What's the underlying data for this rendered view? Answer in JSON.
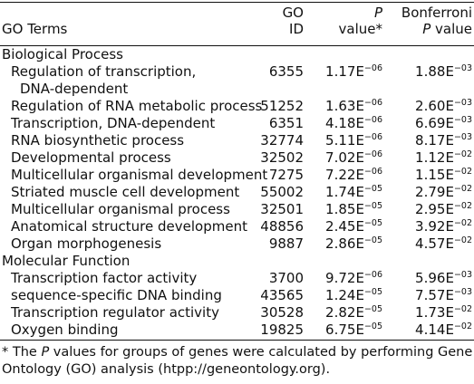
{
  "header": {
    "terms": "GO Terms",
    "goid_line1": "GO",
    "goid_line2": "ID",
    "p_line1": "P",
    "p_line2": "value*",
    "bonf_line1": "Bonferroni",
    "bonf_line2_italic": "P",
    "bonf_line2_rest": " value"
  },
  "sections": [
    {
      "title": "Biological Process",
      "rows": [
        {
          "term": "Regulation of transcription,",
          "term2": "DNA-dependent",
          "id": "6355",
          "p_base": "1.17E",
          "p_exp": "−06",
          "b_base": "1.88E",
          "b_exp": "−03"
        },
        {
          "term": "Regulation of RNA metabolic process",
          "id": "51252",
          "p_base": "1.63E",
          "p_exp": "−06",
          "b_base": "2.60E",
          "b_exp": "−03"
        },
        {
          "term": "Transcription, DNA-dependent",
          "id": "6351",
          "p_base": "4.18E",
          "p_exp": "−06",
          "b_base": "6.69E",
          "b_exp": "−03"
        },
        {
          "term": "RNA biosynthetic process",
          "id": "32774",
          "p_base": "5.11E",
          "p_exp": "−06",
          "b_base": "8.17E",
          "b_exp": "−03"
        },
        {
          "term": "Developmental process",
          "id": "32502",
          "p_base": "7.02E",
          "p_exp": "−06",
          "b_base": "1.12E",
          "b_exp": "−02"
        },
        {
          "term": "Multicellular organismal development",
          "id": "7275",
          "p_base": "7.22E",
          "p_exp": "−06",
          "b_base": "1.15E",
          "b_exp": "−02"
        },
        {
          "term": "Striated muscle cell development",
          "id": "55002",
          "p_base": "1.74E",
          "p_exp": "−05",
          "b_base": "2.79E",
          "b_exp": "−02"
        },
        {
          "term": "Multicellular organismal process",
          "id": "32501",
          "p_base": "1.85E",
          "p_exp": "−05",
          "b_base": "2.95E",
          "b_exp": "−02"
        },
        {
          "term": "Anatomical structure development",
          "id": "48856",
          "p_base": "2.45E",
          "p_exp": "−05",
          "b_base": "3.92E",
          "b_exp": "−02"
        },
        {
          "term": "Organ morphogenesis",
          "id": "9887",
          "p_base": "2.86E",
          "p_exp": "−05",
          "b_base": "4.57E",
          "b_exp": "−02"
        }
      ]
    },
    {
      "title": "Molecular Function",
      "rows": [
        {
          "term": "Transcription factor activity",
          "id": "3700",
          "p_base": "9.72E",
          "p_exp": "−06",
          "b_base": "5.96E",
          "b_exp": "−03"
        },
        {
          "term": "sequence-specific DNA binding",
          "id": "43565",
          "p_base": "1.24E",
          "p_exp": "−05",
          "b_base": "7.57E",
          "b_exp": "−03"
        },
        {
          "term": "Transcription regulator activity",
          "id": "30528",
          "p_base": "2.82E",
          "p_exp": "−05",
          "b_base": "1.73E",
          "b_exp": "−02"
        },
        {
          "term": "Oxygen binding",
          "id": "19825",
          "p_base": "6.75E",
          "p_exp": "−05",
          "b_base": "4.14E",
          "b_exp": "−02"
        }
      ]
    }
  ],
  "footnote": {
    "mark": "* The ",
    "p_italic": "P",
    "text": " values for groups of genes were calculated by performing Gene Ontology (GO) analysis (htpp://geneontology.org)."
  }
}
